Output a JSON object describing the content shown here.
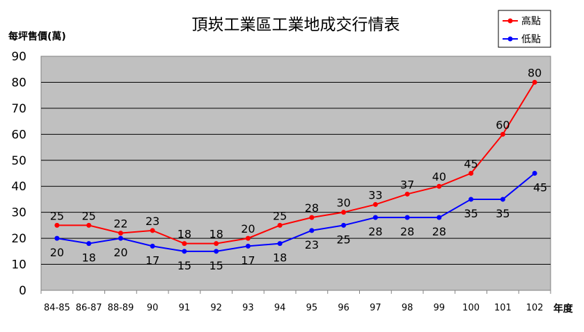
{
  "chart_data": {
    "type": "line",
    "title": "頂崁工業區工業地成交行情表",
    "ylabel": "每坪售價(萬)",
    "xlabel": "年度",
    "categories": [
      "84-85",
      "86-87",
      "88-89",
      "90",
      "91",
      "92",
      "93",
      "94",
      "95",
      "96",
      "97",
      "98",
      "99",
      "100",
      "101",
      "102"
    ],
    "ylim": [
      0,
      90
    ],
    "yticks": [
      0,
      10,
      20,
      30,
      40,
      50,
      60,
      70,
      80,
      90
    ],
    "grid": true,
    "legend_position": "top-right",
    "plot_background": "#c0c0c0",
    "series": [
      {
        "name": "高點",
        "color": "#ff0000",
        "values": [
          25,
          25,
          22,
          23,
          18,
          18,
          20,
          25,
          28,
          30,
          33,
          37,
          40,
          45,
          60,
          80
        ]
      },
      {
        "name": "低點",
        "color": "#0000ff",
        "values": [
          20,
          18,
          20,
          17,
          15,
          15,
          17,
          18,
          23,
          25,
          28,
          28,
          28,
          35,
          35,
          45
        ]
      }
    ]
  }
}
